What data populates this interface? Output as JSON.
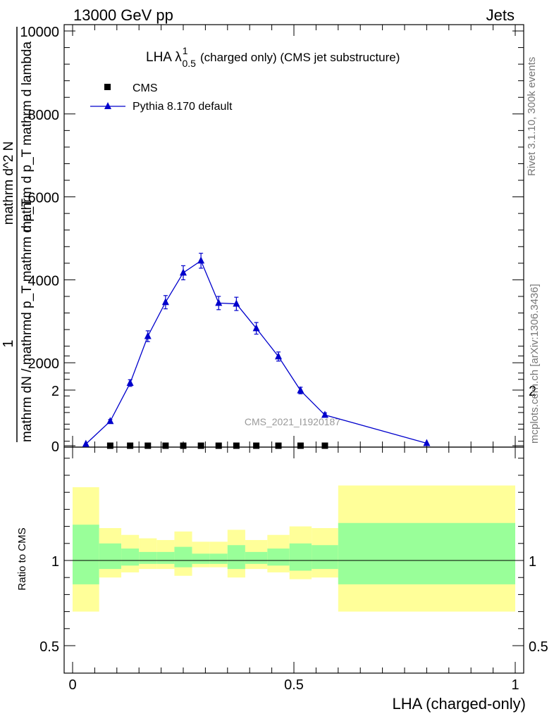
{
  "header": {
    "left": "13000 GeV pp",
    "right": "Jets"
  },
  "title": {
    "main": "LHA λ",
    "sup": "1",
    "sub": "0.5",
    "rest": "(charged only) (CMS jet substructure)"
  },
  "side_labels": {
    "rivet": "Rivet 3.1.10,  300k events",
    "mcplots": "mcplots.cern.ch [arXiv:1306.3436]"
  },
  "watermark": "CMS_2021_I1920187",
  "ylabel_main": {
    "one": "1",
    "den1": "mathrm dN / mathrmd p_T mathrm d p_T",
    "num2": "mathrm d^2 N",
    "den2": "mathrm d p_T  mathrm d lambda"
  },
  "ylabel_ratio": "Ratio to CMS",
  "xlabel": "LHA (charged-only)",
  "legend": [
    {
      "label": "CMS",
      "marker": "square",
      "color": "#000000"
    },
    {
      "label": "Pythia 8.170 default",
      "marker": "triangle",
      "color": "#0000cc"
    }
  ],
  "chart_data": [
    {
      "type": "scatter",
      "panel": "main",
      "xlim": [
        0,
        1
      ],
      "ylim": [
        0,
        10200
      ],
      "yticks": [
        0,
        2000,
        4000,
        6000,
        8000,
        10000
      ],
      "yticklabels": [
        "0",
        "2000",
        "4000",
        "6000",
        "8000",
        "10000"
      ],
      "series": [
        {
          "name": "CMS",
          "color": "#000000",
          "marker": "square",
          "x": [
            0.085,
            0.13,
            0.17,
            0.21,
            0.25,
            0.29,
            0.33,
            0.37,
            0.415,
            0.465,
            0.515,
            0.57
          ],
          "y": [
            0,
            0,
            0,
            0,
            0,
            0,
            0,
            0,
            0,
            0,
            0,
            0
          ]
        },
        {
          "name": "Pythia 8.170 default",
          "color": "#0000cc",
          "marker": "triangle",
          "x": [
            0.03,
            0.085,
            0.13,
            0.17,
            0.21,
            0.25,
            0.29,
            0.33,
            0.37,
            0.415,
            0.465,
            0.515,
            0.57,
            0.8
          ],
          "y": [
            40,
            590,
            1510,
            2640,
            3460,
            4170,
            4460,
            3440,
            3420,
            2830,
            2150,
            1330,
            740,
            60
          ],
          "err": [
            20,
            40,
            80,
            130,
            160,
            170,
            180,
            160,
            160,
            140,
            110,
            80,
            50,
            20
          ]
        }
      ]
    },
    {
      "type": "area",
      "panel": "ratio",
      "ylabel": "Ratio to CMS",
      "xlabel": "LHA (charged-only)",
      "xlim": [
        0,
        1
      ],
      "ylim": [
        0.35,
        2.25
      ],
      "yticks": [
        0.5,
        1,
        2
      ],
      "yticklabels": [
        "0.5",
        "1",
        "2"
      ],
      "xticks": [
        0,
        0.5,
        1
      ],
      "xticklabels": [
        "0",
        "0.5",
        "1"
      ],
      "bands": [
        {
          "x0": 0.0,
          "x1": 0.06,
          "yellow": [
            0.7,
            1.43
          ],
          "green": [
            0.86,
            1.21
          ]
        },
        {
          "x0": 0.06,
          "x1": 0.11,
          "yellow": [
            0.9,
            1.19
          ],
          "green": [
            0.95,
            1.1
          ]
        },
        {
          "x0": 0.11,
          "x1": 0.15,
          "yellow": [
            0.93,
            1.15
          ],
          "green": [
            0.97,
            1.07
          ]
        },
        {
          "x0": 0.15,
          "x1": 0.19,
          "yellow": [
            0.95,
            1.13
          ],
          "green": [
            0.98,
            1.05
          ]
        },
        {
          "x0": 0.19,
          "x1": 0.23,
          "yellow": [
            0.95,
            1.12
          ],
          "green": [
            0.98,
            1.05
          ]
        },
        {
          "x0": 0.23,
          "x1": 0.27,
          "yellow": [
            0.91,
            1.17
          ],
          "green": [
            0.96,
            1.08
          ]
        },
        {
          "x0": 0.27,
          "x1": 0.31,
          "yellow": [
            0.96,
            1.11
          ],
          "green": [
            0.98,
            1.04
          ]
        },
        {
          "x0": 0.31,
          "x1": 0.35,
          "yellow": [
            0.96,
            1.11
          ],
          "green": [
            0.98,
            1.04
          ]
        },
        {
          "x0": 0.35,
          "x1": 0.39,
          "yellow": [
            0.9,
            1.18
          ],
          "green": [
            0.95,
            1.09
          ]
        },
        {
          "x0": 0.39,
          "x1": 0.44,
          "yellow": [
            0.95,
            1.12
          ],
          "green": [
            0.98,
            1.05
          ]
        },
        {
          "x0": 0.44,
          "x1": 0.49,
          "yellow": [
            0.93,
            1.15
          ],
          "green": [
            0.97,
            1.07
          ]
        },
        {
          "x0": 0.49,
          "x1": 0.54,
          "yellow": [
            0.89,
            1.2
          ],
          "green": [
            0.94,
            1.1
          ]
        },
        {
          "x0": 0.54,
          "x1": 0.6,
          "yellow": [
            0.9,
            1.19
          ],
          "green": [
            0.95,
            1.09
          ]
        },
        {
          "x0": 0.6,
          "x1": 1.0,
          "yellow": [
            0.7,
            1.44
          ],
          "green": [
            0.86,
            1.22
          ]
        }
      ],
      "reference_line": 1
    }
  ]
}
